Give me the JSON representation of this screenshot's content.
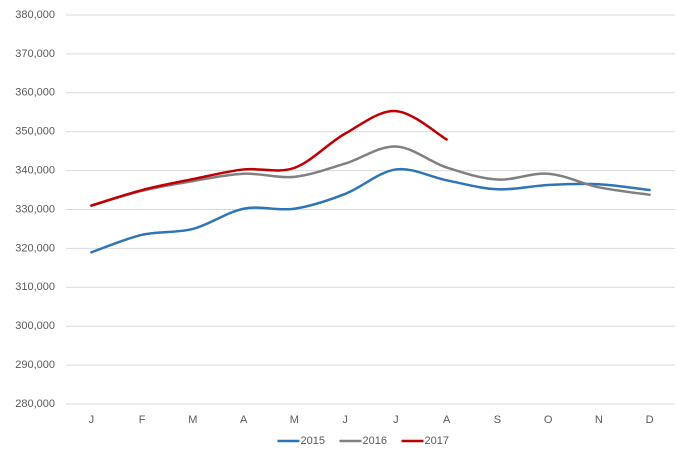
{
  "chart_data": {
    "type": "line",
    "categories": [
      "J",
      "F",
      "M",
      "A",
      "M",
      "J",
      "J",
      "A",
      "S",
      "O",
      "N",
      "D"
    ],
    "series": [
      {
        "name": "2015",
        "color": "#2e75b6",
        "values": [
          319000,
          323500,
          325000,
          330200,
          330200,
          334000,
          340300,
          337500,
          335200,
          336300,
          336500,
          335000
        ]
      },
      {
        "name": "2016",
        "color": "#808080",
        "values": [
          331000,
          334800,
          337300,
          339200,
          338400,
          341800,
          346200,
          340800,
          337700,
          339200,
          335700,
          333800
        ]
      },
      {
        "name": "2017",
        "color": "#c00000",
        "values": [
          331000,
          335000,
          337800,
          340300,
          340700,
          349500,
          355300,
          348000,
          null,
          null,
          null,
          null
        ]
      }
    ],
    "ylim": [
      280000,
      380000
    ],
    "yticks": [
      {
        "value": 280000,
        "label": "280,000"
      },
      {
        "value": 290000,
        "label": "290,000"
      },
      {
        "value": 300000,
        "label": "300,000"
      },
      {
        "value": 310000,
        "label": "310,000"
      },
      {
        "value": 320000,
        "label": "320,000"
      },
      {
        "value": 330000,
        "label": "330,000"
      },
      {
        "value": 340000,
        "label": "340,000"
      },
      {
        "value": 350000,
        "label": "350,000"
      },
      {
        "value": 360000,
        "label": "360,000"
      },
      {
        "value": 370000,
        "label": "370,000"
      },
      {
        "value": 380000,
        "label": "380,000"
      }
    ],
    "grid": true,
    "legend": "bottom"
  }
}
